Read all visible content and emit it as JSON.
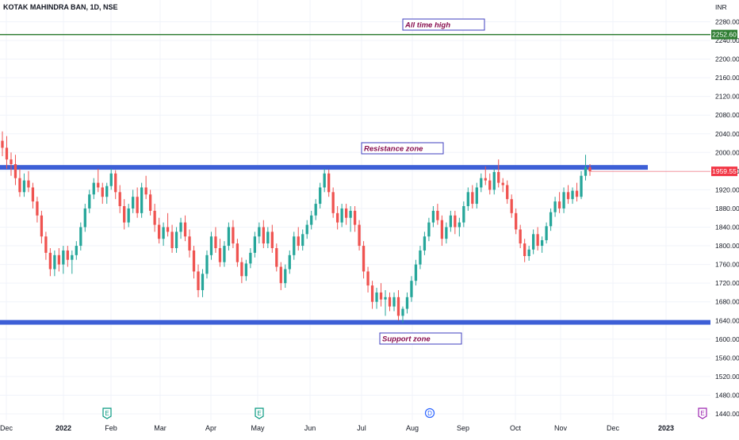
{
  "chart_data": {
    "type": "candlestick",
    "title": "KOTAK MAHINDRA BAN, 1D, NSE",
    "currency": "INR",
    "y_ticks": [
      1440,
      1480,
      1520,
      1560,
      1600,
      1640,
      1680,
      1720,
      1760,
      1800,
      1840,
      1880,
      1920,
      1960,
      2000,
      2040,
      2080,
      2120,
      2160,
      2200,
      2240,
      2280
    ],
    "y_tick_labels": [
      "1440.00",
      "1480.00",
      "1520.00",
      "1560.00",
      "1600.00",
      "1640.00",
      "1680.00",
      "1720.00",
      "1760.00",
      "1800.00",
      "1840.00",
      "1880.00",
      "1920.00",
      "1960.00",
      "2000.00",
      "2040.00",
      "2080.00",
      "2120.00",
      "2160.00",
      "2200.00",
      "2240.00",
      "2280.00"
    ],
    "ylim": [
      1425,
      2300
    ],
    "x_labels": [
      "Dec",
      "2022",
      "Feb",
      "Mar",
      "Apr",
      "May",
      "Jun",
      "Jul",
      "Aug",
      "Sep",
      "Oct",
      "Nov",
      "Dec",
      "2023"
    ],
    "last_price": {
      "value": 1959.55,
      "label": "1959.55",
      "color": "#f23645"
    },
    "all_time_high": {
      "value": 2252.6,
      "label": "2252.60",
      "color": "#2e7d32"
    },
    "resistance_zone": {
      "low": 1963,
      "high": 1973,
      "color": "#3d5fd6"
    },
    "support_zone": {
      "low": 1631,
      "high": 1641,
      "color": "#3d5fd6"
    },
    "annotations": [
      {
        "text": "All time high",
        "anchor": "2252"
      },
      {
        "text": "Resistance zone",
        "anchor": "resistance"
      },
      {
        "text": "Support zone",
        "anchor": "support"
      }
    ],
    "event_markers": [
      "E",
      "E",
      "D",
      "E"
    ],
    "colors": {
      "up": "#26a69a",
      "down": "#ef5350",
      "grid": "#f0f3fa"
    },
    "candles": [
      [
        2025,
        2045,
        1992,
        2010
      ],
      [
        2010,
        2035,
        1965,
        1985
      ],
      [
        1985,
        2000,
        1950,
        1975
      ],
      [
        1975,
        1995,
        1930,
        1945
      ],
      [
        1945,
        1965,
        1905,
        1915
      ],
      [
        1915,
        1955,
        1905,
        1940
      ],
      [
        1940,
        1960,
        1915,
        1925
      ],
      [
        1925,
        1935,
        1880,
        1895
      ],
      [
        1895,
        1905,
        1850,
        1865
      ],
      [
        1865,
        1875,
        1805,
        1820
      ],
      [
        1820,
        1830,
        1770,
        1785
      ],
      [
        1785,
        1795,
        1735,
        1750
      ],
      [
        1750,
        1790,
        1735,
        1780
      ],
      [
        1780,
        1795,
        1745,
        1760
      ],
      [
        1760,
        1800,
        1740,
        1790
      ],
      [
        1790,
        1800,
        1755,
        1770
      ],
      [
        1770,
        1790,
        1740,
        1780
      ],
      [
        1780,
        1810,
        1770,
        1800
      ],
      [
        1800,
        1850,
        1790,
        1840
      ],
      [
        1840,
        1890,
        1830,
        1880
      ],
      [
        1880,
        1920,
        1870,
        1910
      ],
      [
        1910,
        1945,
        1900,
        1935
      ],
      [
        1935,
        1965,
        1915,
        1925
      ],
      [
        1925,
        1935,
        1890,
        1905
      ],
      [
        1905,
        1935,
        1890,
        1928
      ],
      [
        1928,
        1965,
        1920,
        1955
      ],
      [
        1955,
        1962,
        1900,
        1915
      ],
      [
        1915,
        1930,
        1870,
        1885
      ],
      [
        1885,
        1900,
        1835,
        1850
      ],
      [
        1850,
        1890,
        1840,
        1880
      ],
      [
        1880,
        1920,
        1870,
        1905
      ],
      [
        1905,
        1925,
        1860,
        1870
      ],
      [
        1870,
        1935,
        1860,
        1925
      ],
      [
        1925,
        1950,
        1900,
        1910
      ],
      [
        1910,
        1920,
        1865,
        1875
      ],
      [
        1875,
        1890,
        1830,
        1845
      ],
      [
        1845,
        1860,
        1805,
        1815
      ],
      [
        1815,
        1850,
        1800,
        1840
      ],
      [
        1840,
        1870,
        1820,
        1830
      ],
      [
        1830,
        1845,
        1785,
        1795
      ],
      [
        1795,
        1840,
        1785,
        1830
      ],
      [
        1830,
        1860,
        1815,
        1850
      ],
      [
        1850,
        1865,
        1810,
        1820
      ],
      [
        1820,
        1835,
        1775,
        1790
      ],
      [
        1790,
        1800,
        1730,
        1745
      ],
      [
        1745,
        1760,
        1690,
        1705
      ],
      [
        1705,
        1750,
        1690,
        1740
      ],
      [
        1740,
        1790,
        1730,
        1780
      ],
      [
        1780,
        1830,
        1770,
        1820
      ],
      [
        1820,
        1840,
        1785,
        1795
      ],
      [
        1795,
        1815,
        1755,
        1765
      ],
      [
        1765,
        1810,
        1755,
        1800
      ],
      [
        1800,
        1850,
        1790,
        1840
      ],
      [
        1840,
        1855,
        1795,
        1805
      ],
      [
        1805,
        1815,
        1755,
        1765
      ],
      [
        1765,
        1775,
        1720,
        1735
      ],
      [
        1735,
        1770,
        1725,
        1762
      ],
      [
        1762,
        1795,
        1752,
        1785
      ],
      [
        1785,
        1830,
        1775,
        1820
      ],
      [
        1820,
        1850,
        1805,
        1840
      ],
      [
        1840,
        1855,
        1795,
        1805
      ],
      [
        1805,
        1840,
        1795,
        1830
      ],
      [
        1830,
        1845,
        1785,
        1795
      ],
      [
        1795,
        1805,
        1745,
        1755
      ],
      [
        1755,
        1765,
        1705,
        1720
      ],
      [
        1720,
        1760,
        1710,
        1750
      ],
      [
        1750,
        1790,
        1740,
        1780
      ],
      [
        1780,
        1830,
        1770,
        1820
      ],
      [
        1820,
        1840,
        1790,
        1800
      ],
      [
        1800,
        1835,
        1790,
        1825
      ],
      [
        1825,
        1855,
        1815,
        1845
      ],
      [
        1845,
        1875,
        1835,
        1865
      ],
      [
        1865,
        1900,
        1855,
        1890
      ],
      [
        1890,
        1935,
        1880,
        1925
      ],
      [
        1925,
        1965,
        1915,
        1955
      ],
      [
        1955,
        1963,
        1905,
        1915
      ],
      [
        1915,
        1925,
        1860,
        1870
      ],
      [
        1870,
        1885,
        1835,
        1850
      ],
      [
        1850,
        1890,
        1840,
        1880
      ],
      [
        1880,
        1890,
        1845,
        1860
      ],
      [
        1860,
        1885,
        1830,
        1875
      ],
      [
        1875,
        1885,
        1830,
        1845
      ],
      [
        1845,
        1855,
        1790,
        1800
      ],
      [
        1800,
        1810,
        1730,
        1745
      ],
      [
        1745,
        1755,
        1700,
        1715
      ],
      [
        1715,
        1725,
        1665,
        1680
      ],
      [
        1680,
        1710,
        1665,
        1700
      ],
      [
        1700,
        1720,
        1670,
        1685
      ],
      [
        1685,
        1705,
        1650,
        1690
      ],
      [
        1690,
        1700,
        1660,
        1670
      ],
      [
        1670,
        1700,
        1660,
        1690
      ],
      [
        1690,
        1705,
        1640,
        1650
      ],
      [
        1650,
        1670,
        1635,
        1665
      ],
      [
        1665,
        1700,
        1655,
        1690
      ],
      [
        1690,
        1735,
        1680,
        1725
      ],
      [
        1725,
        1770,
        1715,
        1760
      ],
      [
        1760,
        1800,
        1750,
        1790
      ],
      [
        1790,
        1830,
        1780,
        1820
      ],
      [
        1820,
        1860,
        1810,
        1850
      ],
      [
        1850,
        1885,
        1840,
        1875
      ],
      [
        1875,
        1890,
        1845,
        1855
      ],
      [
        1855,
        1865,
        1800,
        1815
      ],
      [
        1815,
        1850,
        1805,
        1840
      ],
      [
        1840,
        1875,
        1830,
        1865
      ],
      [
        1865,
        1875,
        1825,
        1840
      ],
      [
        1840,
        1860,
        1820,
        1850
      ],
      [
        1850,
        1895,
        1840,
        1885
      ],
      [
        1885,
        1925,
        1875,
        1915
      ],
      [
        1915,
        1930,
        1880,
        1890
      ],
      [
        1890,
        1935,
        1880,
        1925
      ],
      [
        1925,
        1955,
        1915,
        1945
      ],
      [
        1945,
        1970,
        1930,
        1940
      ],
      [
        1940,
        1955,
        1910,
        1920
      ],
      [
        1920,
        1965,
        1910,
        1958
      ],
      [
        1958,
        1985,
        1925,
        1935
      ],
      [
        1935,
        1945,
        1915,
        1930
      ],
      [
        1930,
        1940,
        1890,
        1900
      ],
      [
        1900,
        1910,
        1860,
        1870
      ],
      [
        1870,
        1880,
        1825,
        1835
      ],
      [
        1835,
        1845,
        1795,
        1805
      ],
      [
        1805,
        1815,
        1765,
        1778
      ],
      [
        1778,
        1800,
        1768,
        1792
      ],
      [
        1792,
        1835,
        1782,
        1825
      ],
      [
        1825,
        1840,
        1790,
        1800
      ],
      [
        1800,
        1820,
        1785,
        1812
      ],
      [
        1812,
        1850,
        1805,
        1842
      ],
      [
        1842,
        1880,
        1832,
        1872
      ],
      [
        1872,
        1905,
        1862,
        1895
      ],
      [
        1895,
        1915,
        1870,
        1880
      ],
      [
        1880,
        1925,
        1870,
        1915
      ],
      [
        1915,
        1930,
        1890,
        1900
      ],
      [
        1900,
        1925,
        1890,
        1918
      ],
      [
        1918,
        1935,
        1895,
        1905
      ],
      [
        1905,
        1960,
        1900,
        1950
      ],
      [
        1950,
        1995,
        1940,
        1968
      ],
      [
        1968,
        1975,
        1950,
        1959.55
      ]
    ]
  }
}
